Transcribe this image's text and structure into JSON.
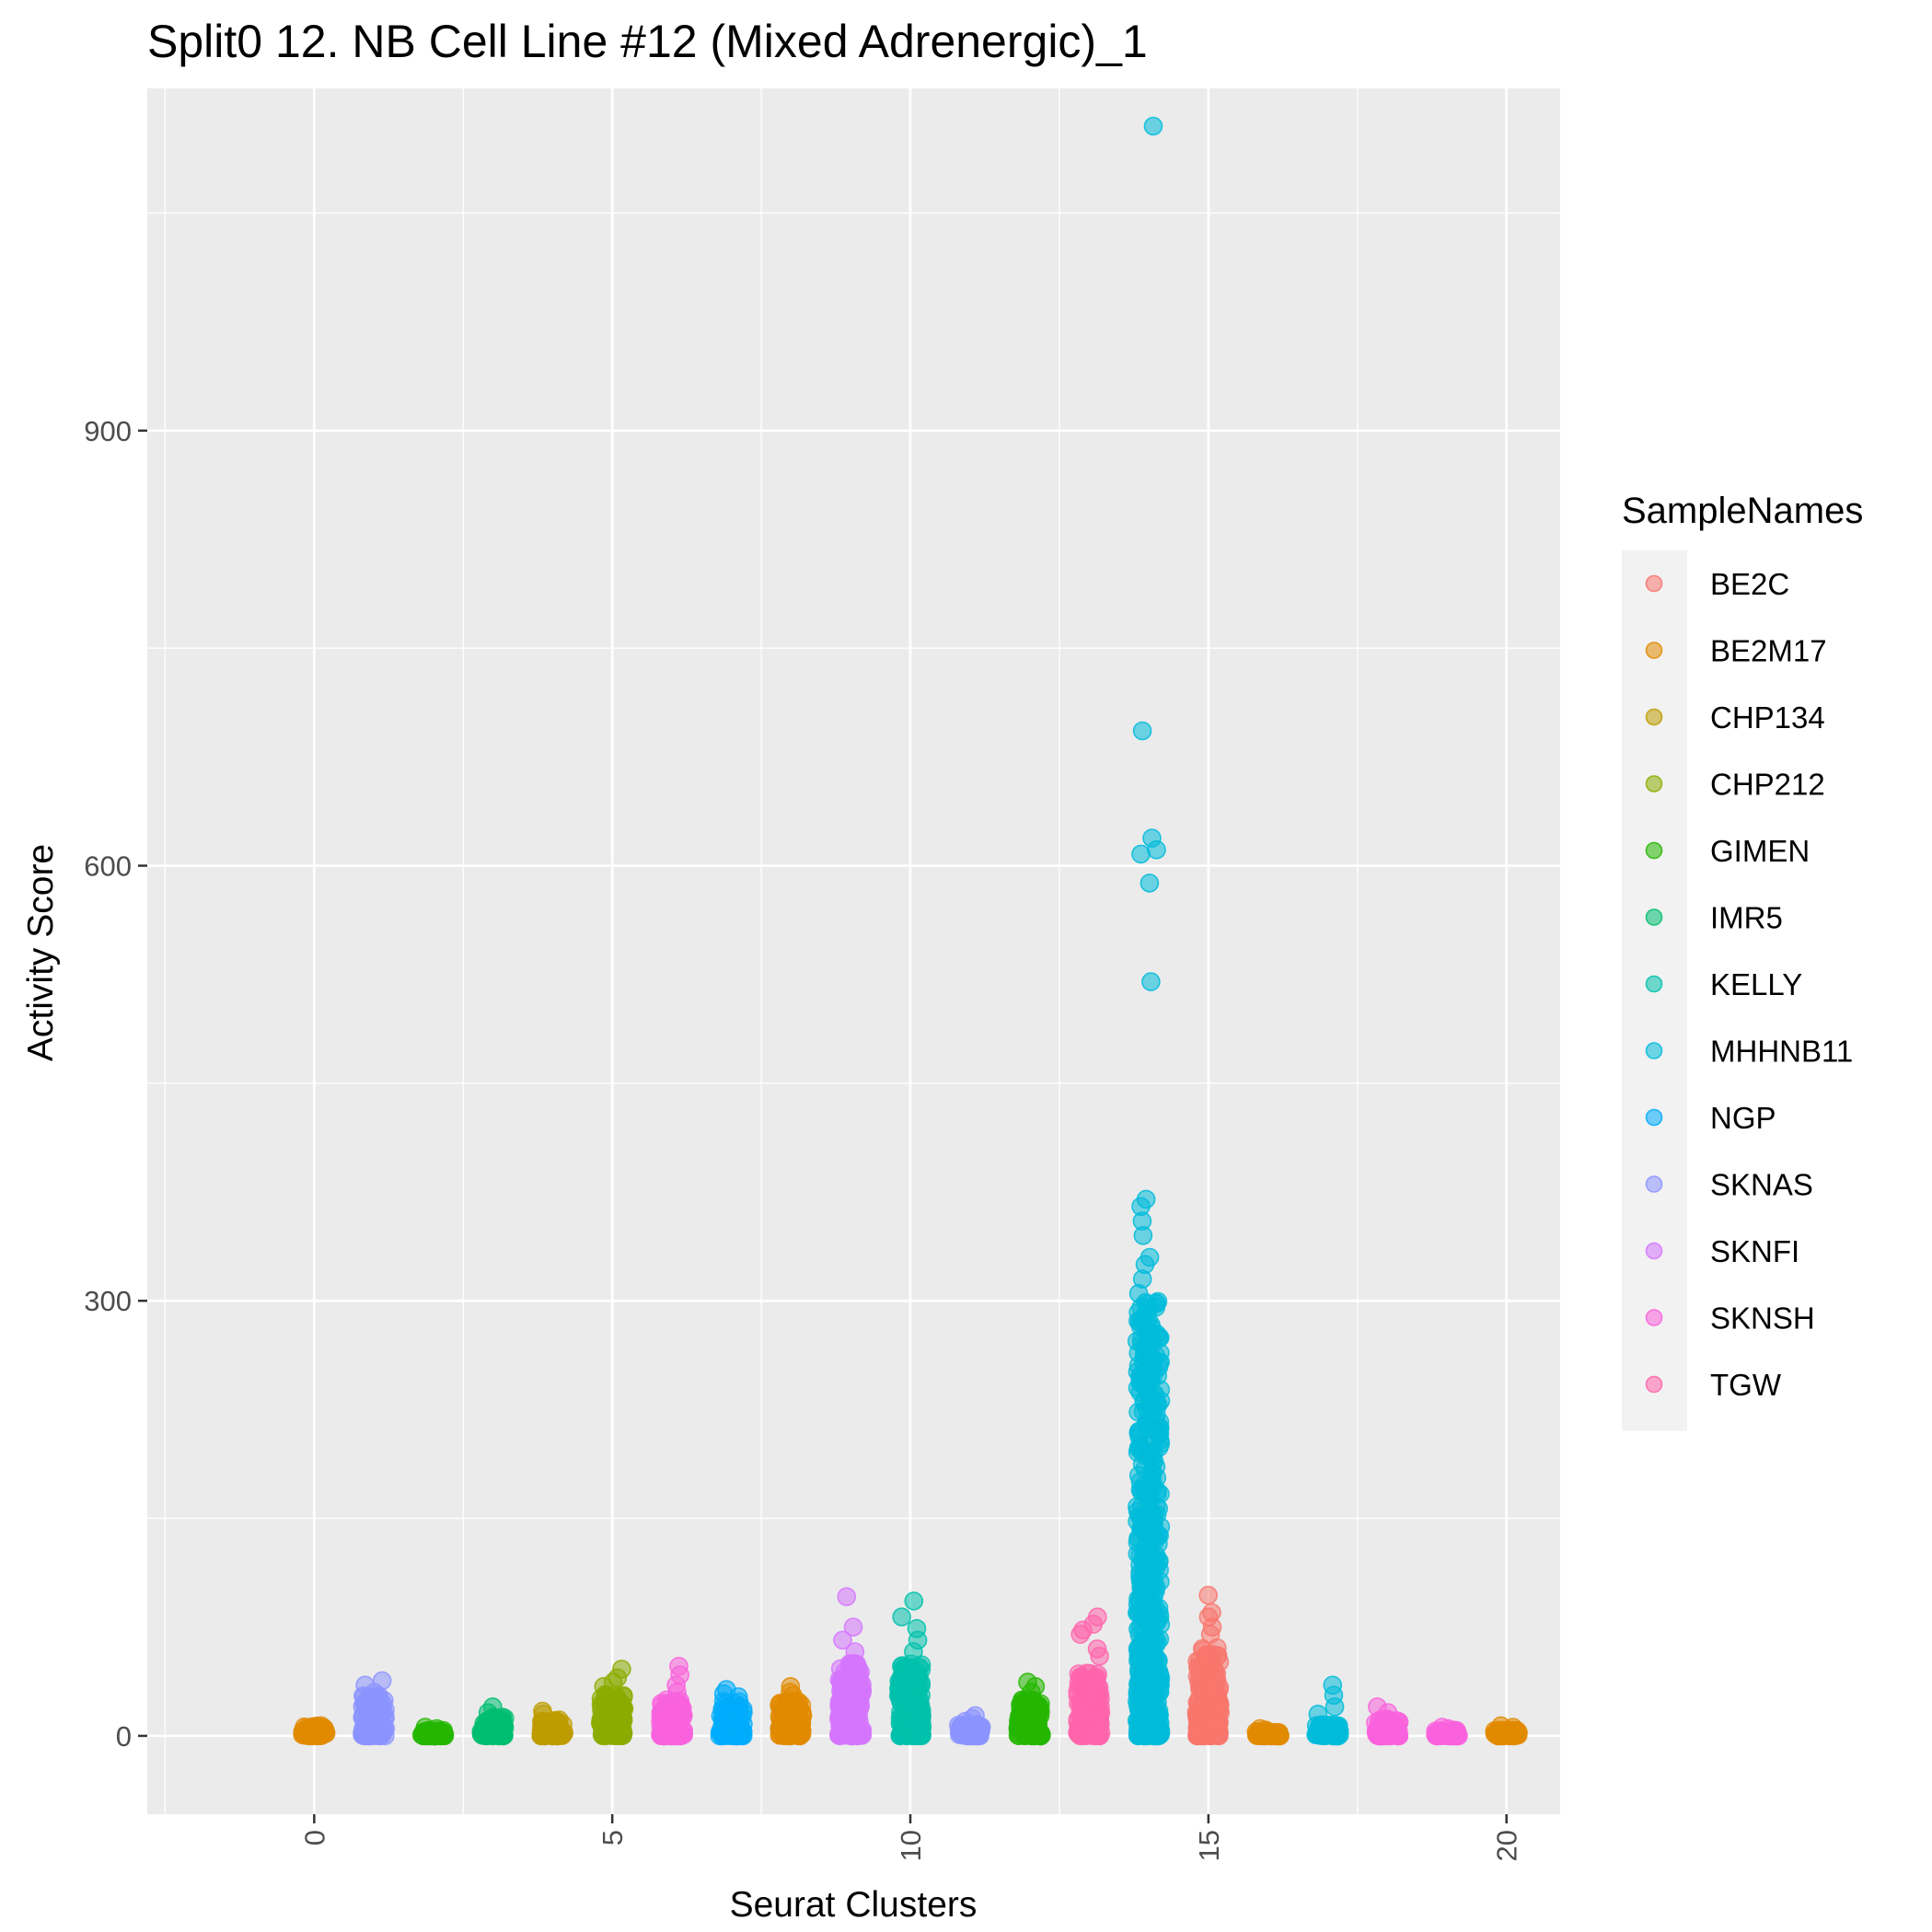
{
  "chart_data": {
    "type": "scatter",
    "title": "Split0 12. NB Cell Line #12 (Mixed Adrenergic)_1",
    "xlabel": "Seurat Clusters",
    "ylabel": "Activity Score",
    "xlim": [
      -2.8,
      20.9
    ],
    "ylim": [
      -54,
      1136
    ],
    "x_ticks": [
      0,
      5,
      10,
      15,
      20
    ],
    "y_ticks": [
      0,
      300,
      600,
      900
    ],
    "x_tick_labels": [
      "0",
      "5",
      "10",
      "15",
      "20"
    ],
    "y_tick_labels": [
      "0",
      "300",
      "600",
      "900"
    ],
    "grid": true,
    "legend_position": "right",
    "legend_title": "SampleNames",
    "series_names": [
      "BE2C",
      "BE2M17",
      "CHP134",
      "CHP212",
      "GIMEN",
      "IMR5",
      "KELLY",
      "MHHNB11",
      "NGP",
      "SKNAS",
      "SKNFI",
      "SKNSH",
      "TGW"
    ],
    "colors": [
      "#F8766D",
      "#E18A00",
      "#BE9C00",
      "#8CAB00",
      "#24B700",
      "#00BE70",
      "#00C1AB",
      "#00BBDA",
      "#00ACFC",
      "#8B93FF",
      "#D575FE",
      "#F962DD",
      "#FF65AC"
    ],
    "clusters": [
      {
        "cluster": 0,
        "sample": "BE2M17",
        "max": 7,
        "outliers": [
          2,
          5
        ]
      },
      {
        "cluster": 1,
        "sample": "SKNAS",
        "max": 28,
        "outliers": [
          38,
          35,
          30,
          22
        ]
      },
      {
        "cluster": 2,
        "sample": "GIMEN",
        "max": 4,
        "outliers": [
          6,
          5
        ]
      },
      {
        "cluster": 3,
        "sample": "IMR5",
        "max": 13,
        "outliers": [
          20,
          16
        ]
      },
      {
        "cluster": 4,
        "sample": "CHP134",
        "max": 12,
        "outliers": [
          17,
          15
        ]
      },
      {
        "cluster": 5,
        "sample": "CHP212",
        "max": 30,
        "outliers": [
          46,
          40,
          37,
          34
        ]
      },
      {
        "cluster": 6,
        "sample": "SKNSH",
        "max": 25,
        "outliers": [
          48,
          42,
          35,
          30
        ]
      },
      {
        "cluster": 7,
        "sample": "NGP",
        "max": 24,
        "outliers": [
          32,
          29,
          27
        ]
      },
      {
        "cluster": 8,
        "sample": "BE2M17",
        "max": 25,
        "outliers": [
          34,
          30,
          28
        ]
      },
      {
        "cluster": 9,
        "sample": "SKNFI",
        "max": 50,
        "outliers": [
          96,
          75,
          66,
          58
        ]
      },
      {
        "cluster": 10,
        "sample": "KELLY",
        "max": 50,
        "outliers": [
          93,
          82,
          74,
          66,
          58
        ]
      },
      {
        "cluster": 11,
        "sample": "SKNAS",
        "max": 8,
        "outliers": [
          14,
          12,
          10
        ]
      },
      {
        "cluster": 12,
        "sample": "GIMEN",
        "max": 25,
        "outliers": [
          37,
          34,
          30
        ]
      },
      {
        "cluster": 13,
        "sample": "TGW",
        "max": 45,
        "outliers": [
          82,
          77,
          73,
          70,
          60,
          55
        ]
      },
      {
        "cluster": 14,
        "sample": "MHHNB11",
        "max": 300,
        "outliers": [
          1110,
          693,
          619,
          611,
          608,
          588,
          520,
          370,
          365,
          355,
          345,
          330,
          325,
          315,
          305
        ]
      },
      {
        "cluster": 15,
        "sample": "BE2C",
        "max": 62,
        "outliers": [
          97,
          85,
          82,
          75,
          70
        ]
      },
      {
        "cluster": 16,
        "sample": "BE2M17",
        "max": 3,
        "outliers": [
          5,
          4
        ]
      },
      {
        "cluster": 17,
        "sample": "MHHNB11",
        "max": 8,
        "outliers": [
          35,
          28,
          20,
          15
        ]
      },
      {
        "cluster": 18,
        "sample": "SKNSH",
        "max": 12,
        "outliers": [
          20,
          16
        ]
      },
      {
        "cluster": 19,
        "sample": "SKNSH",
        "max": 4,
        "outliers": [
          6,
          5
        ]
      },
      {
        "cluster": 20,
        "sample": "BE2M17",
        "max": 4,
        "outliers": [
          7,
          6
        ]
      }
    ]
  }
}
